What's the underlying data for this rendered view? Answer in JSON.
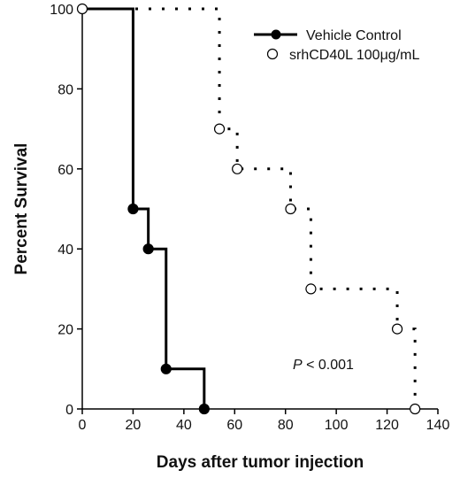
{
  "chart_data": {
    "type": "line",
    "xlabel": "Days after tumor injection",
    "ylabel": "Percent Survival",
    "xlim": [
      0,
      140
    ],
    "ylim": [
      0,
      100
    ],
    "xticks": [
      "0",
      "20",
      "40",
      "60",
      "80",
      "100",
      "120",
      "140"
    ],
    "yticks": [
      "0",
      "20",
      "40",
      "60",
      "80",
      "100"
    ],
    "grid": false,
    "legend_position": "top-right",
    "annotation": {
      "italic": "P",
      "rest": " < 0.001"
    },
    "series": [
      {
        "name": "Vehicle Control",
        "style": "solid",
        "marker": "filled-circle",
        "color": "#000000",
        "x": [
          0,
          20,
          26,
          33,
          48
        ],
        "y": [
          100,
          50,
          40,
          10,
          0
        ]
      },
      {
        "name": "srhCD40L 100μg/mL",
        "style": "dotted",
        "marker": "open-circle",
        "color": "#000000",
        "x": [
          0,
          54,
          61,
          82,
          90,
          124,
          131
        ],
        "y": [
          100,
          70,
          60,
          50,
          30,
          20,
          0
        ]
      }
    ]
  }
}
